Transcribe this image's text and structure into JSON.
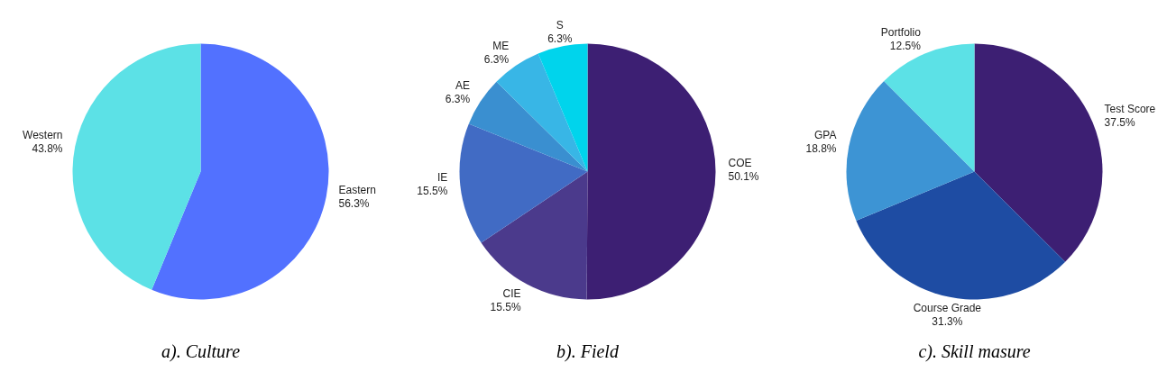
{
  "chart_data": [
    {
      "type": "pie",
      "title": "a). Culture",
      "categories": [
        "Eastern",
        "Western"
      ],
      "values": [
        56.3,
        43.8
      ],
      "value_labels": [
        "56.3%",
        "43.8%"
      ],
      "colors": [
        "#5271ff",
        "#5ce1e6"
      ]
    },
    {
      "type": "pie",
      "title": "b). Field",
      "categories": [
        "COE",
        "CIE",
        "IE",
        "AE",
        "ME",
        "S"
      ],
      "values": [
        50.1,
        15.5,
        15.5,
        6.3,
        6.3,
        6.3
      ],
      "value_labels": [
        "50.1%",
        "15.5%",
        "15.5%",
        "6.3%",
        "6.3%",
        "6.3%"
      ],
      "colors": [
        "#3d1f73",
        "#4b3a8c",
        "#416bc4",
        "#3a8fd0",
        "#38b6e6",
        "#00d4ec"
      ]
    },
    {
      "type": "pie",
      "title": "c). Skill masure",
      "categories": [
        "Test Score",
        "Course Grade",
        "GPA",
        "Portfolio"
      ],
      "values": [
        37.5,
        31.3,
        18.8,
        12.5
      ],
      "value_labels": [
        "37.5%",
        "31.3%",
        "18.8%",
        "12.5%"
      ],
      "colors": [
        "#3d1f73",
        "#1e4ca3",
        "#3d94d4",
        "#5ce1e6"
      ]
    }
  ]
}
